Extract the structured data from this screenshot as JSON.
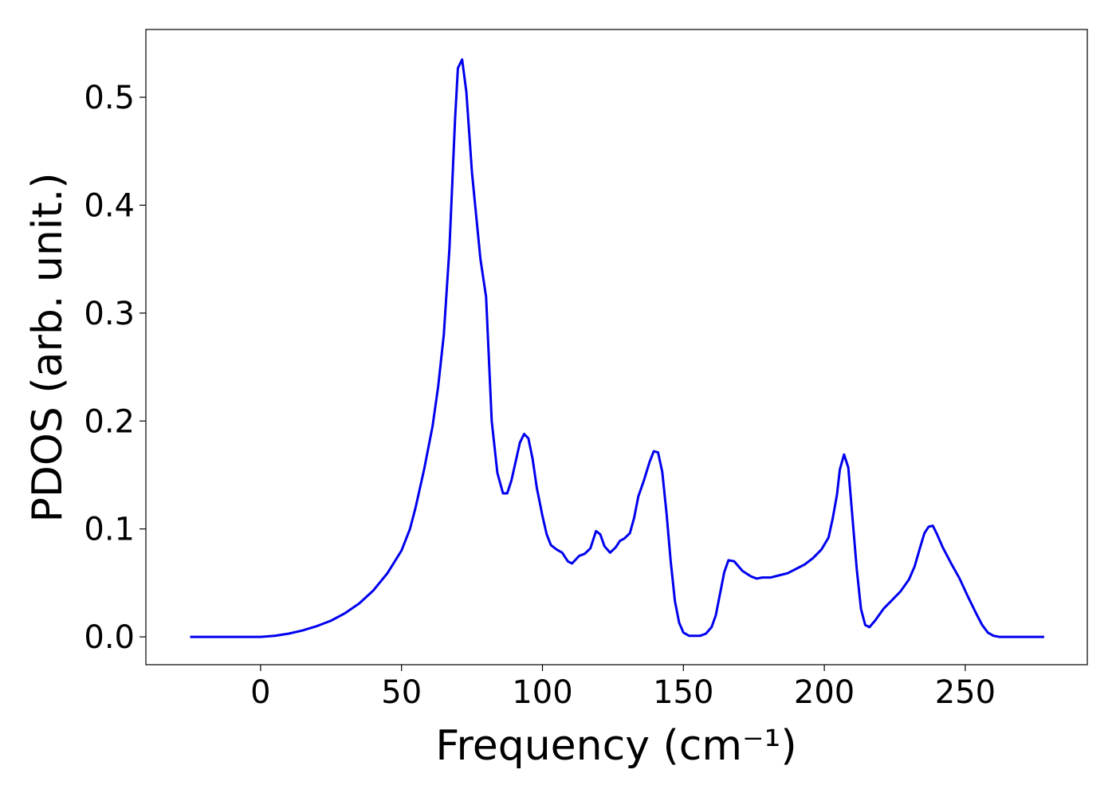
{
  "chart_data": {
    "type": "line",
    "xlabel": "Frequency (cm⁻¹)",
    "ylabel": "PDOS (arb. unit.)",
    "color": "#0000ee",
    "x": [
      -25,
      -15,
      -5,
      0,
      5,
      10,
      15,
      20,
      25,
      30,
      35,
      40,
      45,
      50,
      53,
      55,
      58,
      61,
      63,
      65,
      67,
      69,
      70,
      71.5,
      73,
      75,
      78,
      80,
      82,
      84,
      86,
      87.5,
      89,
      92,
      93.5,
      95,
      96.5,
      98,
      100,
      101.5,
      103,
      105,
      107,
      109,
      110.5,
      113,
      115,
      117,
      119,
      120.5,
      122,
      124,
      126,
      127.5,
      129,
      131,
      132.5,
      134,
      136,
      138,
      139.5,
      141,
      142.5,
      144,
      145.5,
      147,
      148.5,
      150,
      152,
      156,
      158,
      160,
      161.5,
      163,
      164.5,
      166,
      168,
      171,
      174,
      176,
      178,
      181,
      184,
      187,
      190,
      193,
      196,
      199,
      201.5,
      203,
      204.5,
      205.5,
      207,
      208.5,
      210,
      211.5,
      213,
      214.5,
      216,
      218,
      221,
      224,
      227,
      230,
      232,
      234,
      235.5,
      237,
      238.5,
      240,
      242,
      245,
      248,
      251,
      254,
      256,
      258,
      260,
      262,
      270,
      278
    ],
    "values": [
      0,
      0,
      0,
      0,
      0.001,
      0.003,
      0.006,
      0.01,
      0.015,
      0.022,
      0.031,
      0.043,
      0.059,
      0.08,
      0.1,
      0.12,
      0.155,
      0.195,
      0.232,
      0.28,
      0.36,
      0.48,
      0.527,
      0.535,
      0.505,
      0.43,
      0.35,
      0.315,
      0.2,
      0.152,
      0.133,
      0.133,
      0.145,
      0.18,
      0.188,
      0.184,
      0.165,
      0.138,
      0.112,
      0.095,
      0.085,
      0.081,
      0.078,
      0.07,
      0.068,
      0.075,
      0.077,
      0.082,
      0.098,
      0.095,
      0.084,
      0.078,
      0.083,
      0.089,
      0.091,
      0.096,
      0.11,
      0.13,
      0.145,
      0.162,
      0.172,
      0.171,
      0.153,
      0.115,
      0.07,
      0.033,
      0.013,
      0.004,
      0.001,
      0.001,
      0.003,
      0.009,
      0.02,
      0.04,
      0.06,
      0.071,
      0.07,
      0.061,
      0.056,
      0.054,
      0.055,
      0.055,
      0.057,
      0.059,
      0.063,
      0.067,
      0.073,
      0.081,
      0.092,
      0.11,
      0.132,
      0.155,
      0.169,
      0.157,
      0.11,
      0.063,
      0.026,
      0.011,
      0.009,
      0.015,
      0.026,
      0.034,
      0.042,
      0.053,
      0.065,
      0.083,
      0.096,
      0.102,
      0.103,
      0.095,
      0.083,
      0.068,
      0.054,
      0.037,
      0.021,
      0.011,
      0.004,
      0.001,
      0,
      0,
      0
    ],
    "xlim": [
      -40.7,
      293.3
    ],
    "ylim": [
      -0.0258,
      0.5628
    ],
    "xticks": [
      0,
      50,
      100,
      150,
      200,
      250
    ],
    "yticks": [
      {
        "value": 0,
        "label": "0.0"
      },
      0.1,
      0.2,
      0.3,
      0.4,
      0.5
    ]
  }
}
